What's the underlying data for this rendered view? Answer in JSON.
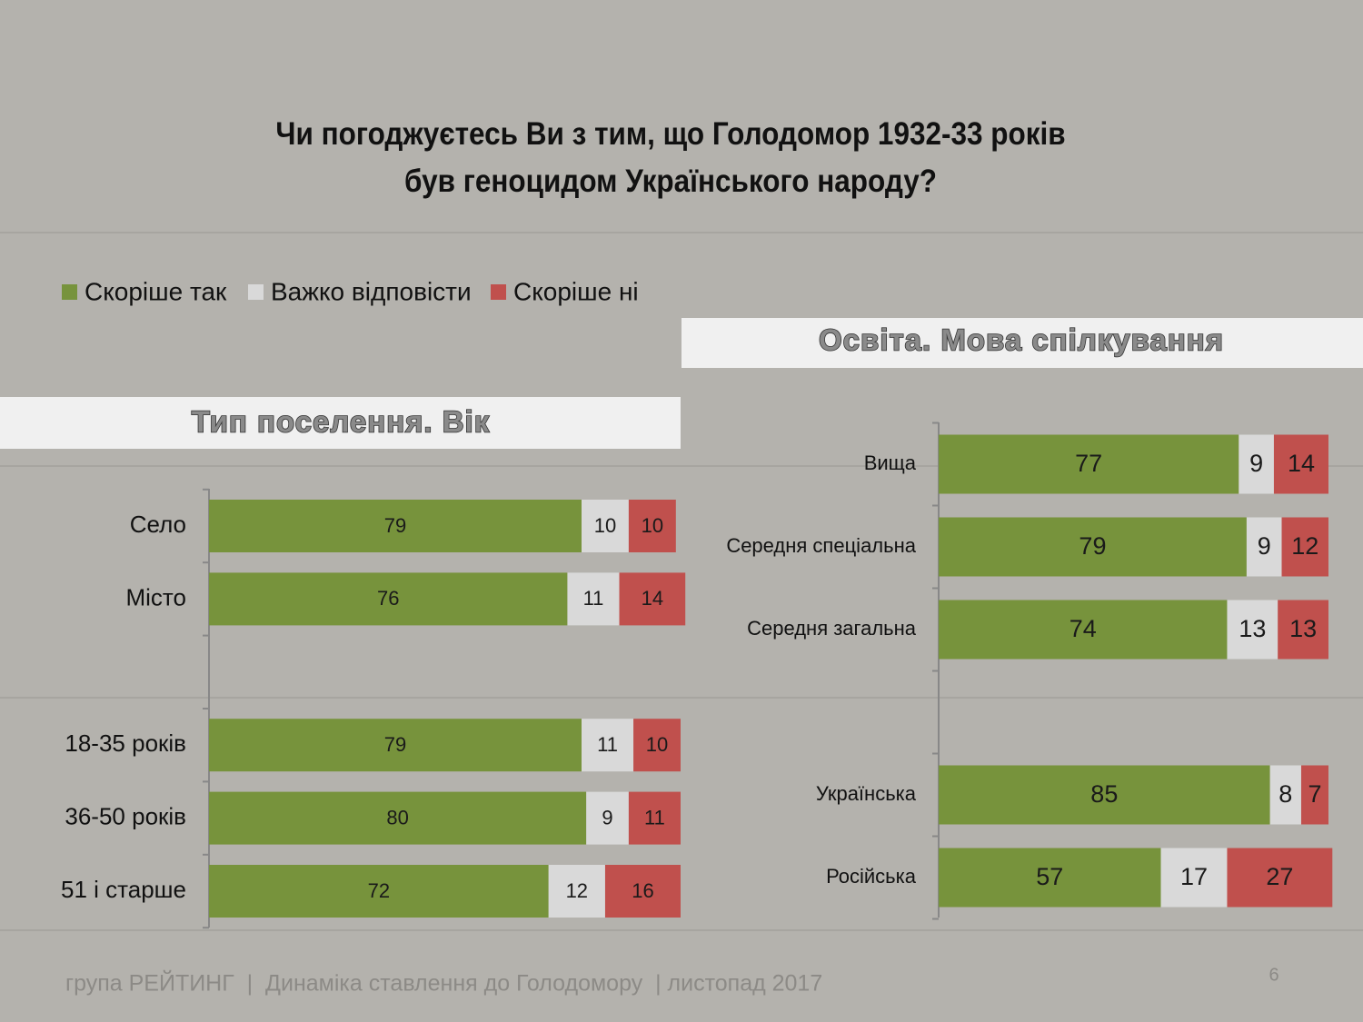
{
  "title": "Чи погоджуєтесь Ви з тим, що Голодомор 1932-33 років був геноцидом Українського народу?",
  "footer": "група РЕЙТИНГ  |  Динаміка ставлення до Голодомору  | листопад 2017",
  "page_number": 6,
  "chart_data": [
    {
      "type": "bar",
      "orientation": "horizontal",
      "stacked": true,
      "title": "Тип поселення. Вік",
      "categories": [
        "Село",
        "Місто",
        null,
        "18-35 років",
        "36-50 років",
        "51 і старше"
      ],
      "xlim": [
        0,
        100
      ],
      "series": [
        {
          "name": "Скоріше так",
          "color": "#77933c",
          "values": [
            79,
            76,
            null,
            79,
            80,
            72
          ]
        },
        {
          "name": "Важко відповісти",
          "color": "#d9d9d9",
          "values": [
            10,
            11,
            null,
            11,
            9,
            12
          ]
        },
        {
          "name": "Скоріше ні",
          "color": "#c0504d",
          "values": [
            10,
            14,
            null,
            10,
            11,
            16
          ]
        }
      ]
    },
    {
      "type": "bar",
      "orientation": "horizontal",
      "stacked": true,
      "title": "Освіта. Мова спілкування",
      "categories": [
        "Вища",
        "Середня спеціальна",
        "Середня загальна",
        null,
        "Українська",
        "Російська"
      ],
      "xlim": [
        0,
        100
      ],
      "series": [
        {
          "color": "#77933c",
          "values": [
            77,
            79,
            74,
            null,
            85,
            57
          ]
        },
        {
          "color": "#d9d9d9",
          "values": [
            9,
            9,
            13,
            null,
            8,
            17
          ]
        },
        {
          "color": "#c0504d",
          "values": [
            14,
            12,
            13,
            null,
            7,
            27
          ]
        }
      ]
    }
  ]
}
